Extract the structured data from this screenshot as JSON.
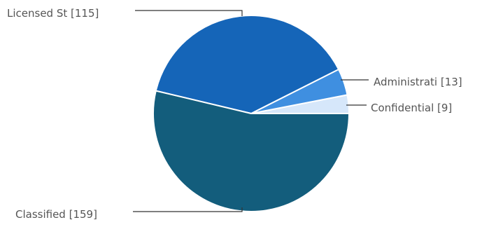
{
  "chart_data": {
    "type": "pie",
    "slices": [
      {
        "label": "Licensed St [115]",
        "value": 115,
        "color": "#1565b8"
      },
      {
        "label": "Administrati [13]",
        "value": 13,
        "color": "#3f8fe0"
      },
      {
        "label": "Confidential  [9]",
        "value": 9,
        "color": "#d6e7fa"
      },
      {
        "label": "Classified  [159]",
        "value": 159,
        "color": "#135d7c"
      }
    ],
    "legend": "none"
  }
}
